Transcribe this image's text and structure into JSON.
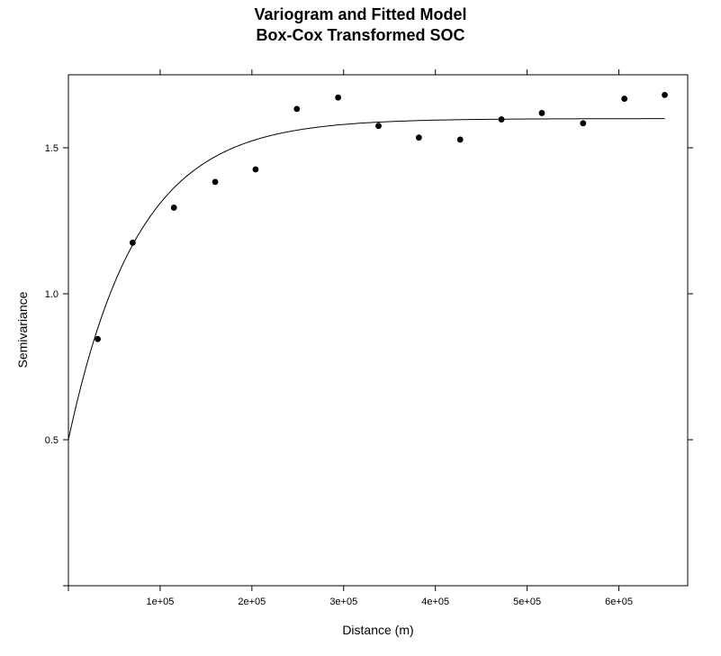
{
  "chart_data": {
    "type": "scatter",
    "title": "Variogram and Fitted Model",
    "subtitle": "Box-Cox Transformed SOC",
    "xlabel": "Distance (m)",
    "ylabel": "Semivariance",
    "xlim": [
      0,
      675000
    ],
    "ylim": [
      0,
      1.75
    ],
    "grid": false,
    "x_ticks": [
      {
        "value": 100000,
        "label": "1e+05"
      },
      {
        "value": 200000,
        "label": "2e+05"
      },
      {
        "value": 300000,
        "label": "3e+05"
      },
      {
        "value": 400000,
        "label": "4e+05"
      },
      {
        "value": 500000,
        "label": "5e+05"
      },
      {
        "value": 600000,
        "label": "6e+05"
      }
    ],
    "y_ticks": [
      {
        "value": 0.5,
        "label": "0.5"
      },
      {
        "value": 1.0,
        "label": "1.0"
      },
      {
        "value": 1.5,
        "label": "1.5"
      }
    ],
    "points": {
      "x": [
        32000,
        70000,
        115000,
        160000,
        204000,
        249000,
        294000,
        338000,
        382000,
        427000,
        472000,
        516000,
        561000,
        606000,
        650000
      ],
      "y": [
        0.845,
        1.175,
        1.295,
        1.383,
        1.426,
        1.633,
        1.672,
        1.575,
        1.535,
        1.528,
        1.597,
        1.619,
        1.584,
        1.668,
        1.681
      ]
    },
    "fitted_model": {
      "type": "exponential",
      "nugget": 0.5,
      "sill": 1.6,
      "range": 75000,
      "x_min": 0,
      "x_max": 650000
    }
  }
}
